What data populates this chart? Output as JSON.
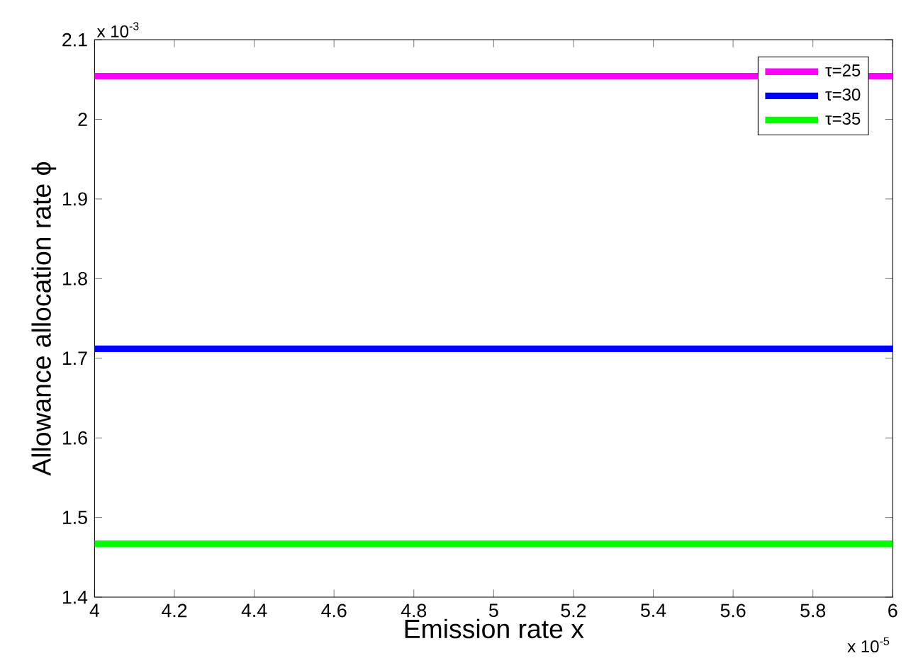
{
  "chart_data": {
    "type": "line",
    "xlabel": "Emission rate x",
    "ylabel": "Allowance allocation rate ϕ",
    "x": [
      4,
      6
    ],
    "series": [
      {
        "name": "τ=25",
        "color": "#ff00ff",
        "values": [
          2.054,
          2.054
        ]
      },
      {
        "name": "τ=30",
        "color": "#0000ff",
        "values": [
          1.712,
          1.712
        ]
      },
      {
        "name": "τ=35",
        "color": "#00ff00",
        "values": [
          1.467,
          1.467
        ]
      }
    ],
    "xlim": [
      4,
      6
    ],
    "ylim": [
      1.4,
      2.1
    ],
    "xticks": [
      4,
      4.2,
      4.4,
      4.6,
      4.8,
      5,
      5.2,
      5.4,
      5.6,
      5.8,
      6
    ],
    "yticks": [
      1.4,
      1.5,
      1.6,
      1.7,
      1.8,
      1.9,
      2,
      2.1
    ],
    "annotations": [
      "x 10$^{-3}$",
      "x 10$^{-5}$"
    ],
    "legend": "top right",
    "grid": false,
    "marker": "none",
    "line_style": "solid"
  }
}
